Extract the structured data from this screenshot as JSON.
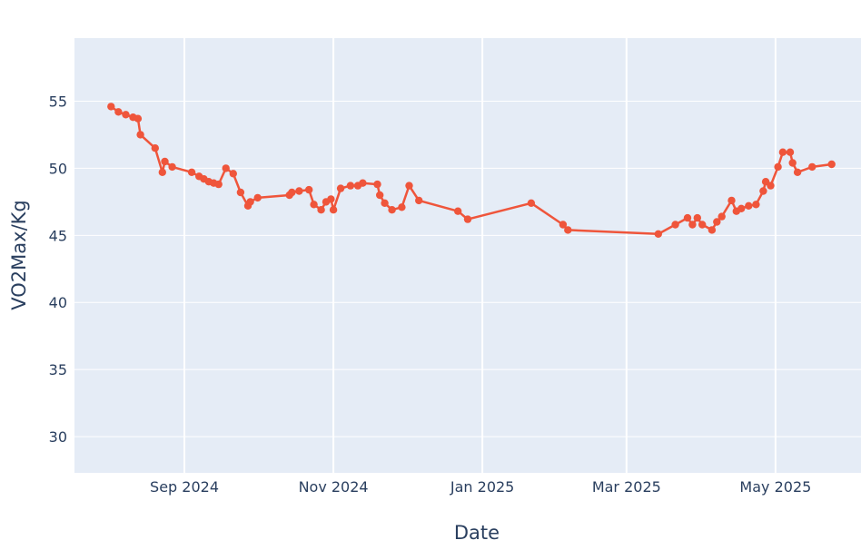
{
  "chart_data": {
    "type": "line",
    "xlabel": "Date",
    "ylabel": "VO2Max/Kg",
    "x_type": "date",
    "xlim": [
      "2024-07-18",
      "2025-06-05"
    ],
    "ylim": [
      27.3,
      59.7
    ],
    "x_ticks": [
      {
        "value": "2024-09-01",
        "label": "Sep 2024"
      },
      {
        "value": "2024-11-01",
        "label": "Nov 2024"
      },
      {
        "value": "2025-01-01",
        "label": "Jan 2025"
      },
      {
        "value": "2025-03-01",
        "label": "Mar 2025"
      },
      {
        "value": "2025-05-01",
        "label": "May 2025"
      }
    ],
    "y_ticks": [
      30,
      35,
      40,
      45,
      50,
      55
    ],
    "grid": true,
    "colors": {
      "line": "#EF553B",
      "plot_bg": "#E5ECF6",
      "grid": "#ffffff",
      "text": "#2a3f5f"
    },
    "series": [
      {
        "x": [
          "2024-08-02",
          "2024-08-05",
          "2024-08-08",
          "2024-08-11",
          "2024-08-13",
          "2024-08-14",
          "2024-08-20",
          "2024-08-23",
          "2024-08-24",
          "2024-08-27",
          "2024-09-04",
          "2024-09-07",
          "2024-09-09",
          "2024-09-11",
          "2024-09-13",
          "2024-09-15",
          "2024-09-18",
          "2024-09-21",
          "2024-09-24",
          "2024-09-27",
          "2024-09-28",
          "2024-10-01",
          "2024-10-14",
          "2024-10-15",
          "2024-10-18",
          "2024-10-22",
          "2024-10-24",
          "2024-10-27",
          "2024-10-29",
          "2024-10-31",
          "2024-11-01",
          "2024-11-04",
          "2024-11-08",
          "2024-11-11",
          "2024-11-13",
          "2024-11-19",
          "2024-11-20",
          "2024-11-22",
          "2024-11-25",
          "2024-11-29",
          "2024-12-02",
          "2024-12-06",
          "2024-12-22",
          "2024-12-26",
          "2025-01-21",
          "2025-02-03",
          "2025-02-05",
          "2025-03-14",
          "2025-03-21",
          "2025-03-26",
          "2025-03-28",
          "2025-03-30",
          "2025-04-01",
          "2025-04-05",
          "2025-04-07",
          "2025-04-09",
          "2025-04-13",
          "2025-04-15",
          "2025-04-17",
          "2025-04-20",
          "2025-04-23",
          "2025-04-26",
          "2025-04-27",
          "2025-04-29",
          "2025-05-02",
          "2025-05-04",
          "2025-05-07",
          "2025-05-08",
          "2025-05-10",
          "2025-05-16",
          "2025-05-24"
        ],
        "y": [
          54.6,
          54.2,
          54.0,
          53.8,
          53.7,
          52.5,
          51.5,
          49.7,
          50.5,
          50.1,
          49.7,
          49.4,
          49.2,
          49.0,
          48.9,
          48.8,
          50.0,
          49.6,
          48.2,
          47.2,
          47.5,
          47.8,
          48.0,
          48.2,
          48.3,
          48.4,
          47.3,
          46.9,
          47.5,
          47.7,
          46.9,
          48.5,
          48.7,
          48.7,
          48.9,
          48.8,
          48.0,
          47.4,
          46.9,
          47.1,
          48.7,
          47.6,
          46.8,
          46.2,
          47.4,
          45.8,
          45.4,
          45.1,
          45.8,
          46.3,
          45.8,
          46.3,
          45.8,
          45.4,
          46.0,
          46.4,
          47.6,
          46.8,
          47.0,
          47.2,
          47.3,
          48.3,
          49.0,
          48.7,
          50.1,
          51.2,
          51.2,
          50.4,
          49.7,
          50.1,
          50.3
        ]
      }
    ]
  }
}
